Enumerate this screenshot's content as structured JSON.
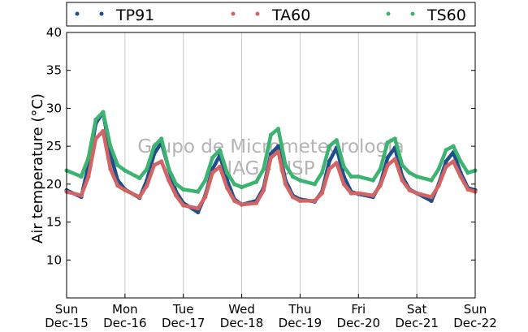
{
  "chart_data": {
    "type": "scatter",
    "title": "",
    "xlabel": "",
    "ylabel": "Air temperature (°C)",
    "ylim": [
      5,
      40
    ],
    "yticks": [
      10,
      15,
      20,
      25,
      30,
      35,
      40
    ],
    "xlim": [
      "2013-12-15T00:00",
      "2013-12-22T00:00"
    ],
    "x_ticks": [
      {
        "day": "Sun",
        "date": "Dec-15"
      },
      {
        "day": "Mon",
        "date": "Dec-16"
      },
      {
        "day": "Tue",
        "date": "Dec-17"
      },
      {
        "day": "Wed",
        "date": "Dec-18"
      },
      {
        "day": "Thu",
        "date": "Dec-19"
      },
      {
        "day": "Fri",
        "date": "Dec-20"
      },
      {
        "day": "Sat",
        "date": "Dec-21"
      },
      {
        "day": "Sun",
        "date": "Dec-22"
      }
    ],
    "grid": "vertical",
    "legend_position": "top",
    "watermark": [
      "Grupo de Micrometeorologia",
      "IAG - USP"
    ],
    "series": [
      {
        "name": "TP91",
        "color": "#1f4e8c",
        "points": [
          [
            "2013-12-15T00:00",
            19.2
          ],
          [
            "2013-12-15T06:00",
            18.3
          ],
          [
            "2013-12-15T09:00",
            22.5
          ],
          [
            "2013-12-15T12:00",
            28.0
          ],
          [
            "2013-12-15T15:00",
            29.5
          ],
          [
            "2013-12-15T18:00",
            24.0
          ],
          [
            "2013-12-15T21:00",
            20.5
          ],
          [
            "2013-12-16T00:00",
            19.3
          ],
          [
            "2013-12-16T06:00",
            18.2
          ],
          [
            "2013-12-16T09:00",
            20.5
          ],
          [
            "2013-12-16T12:00",
            24.0
          ],
          [
            "2013-12-16T15:00",
            25.5
          ],
          [
            "2013-12-16T18:00",
            22.0
          ],
          [
            "2013-12-16T21:00",
            19.0
          ],
          [
            "2013-12-17T00:00",
            17.5
          ],
          [
            "2013-12-17T06:00",
            16.3
          ],
          [
            "2013-12-17T09:00",
            18.5
          ],
          [
            "2013-12-17T12:00",
            22.0
          ],
          [
            "2013-12-17T15:00",
            23.8
          ],
          [
            "2013-12-17T18:00",
            20.5
          ],
          [
            "2013-12-17T21:00",
            18.0
          ],
          [
            "2013-12-18T00:00",
            17.3
          ],
          [
            "2013-12-18T06:00",
            17.8
          ],
          [
            "2013-12-18T09:00",
            19.5
          ],
          [
            "2013-12-18T12:00",
            24.0
          ],
          [
            "2013-12-18T15:00",
            25.0
          ],
          [
            "2013-12-18T18:00",
            20.5
          ],
          [
            "2013-12-18T21:00",
            18.5
          ],
          [
            "2013-12-19T00:00",
            18.0
          ],
          [
            "2013-12-19T06:00",
            17.7
          ],
          [
            "2013-12-19T09:00",
            19.0
          ],
          [
            "2013-12-19T12:00",
            23.0
          ],
          [
            "2013-12-19T15:00",
            24.8
          ],
          [
            "2013-12-19T18:00",
            21.0
          ],
          [
            "2013-12-19T21:00",
            19.0
          ],
          [
            "2013-12-20T00:00",
            18.7
          ],
          [
            "2013-12-20T06:00",
            18.3
          ],
          [
            "2013-12-20T09:00",
            20.0
          ],
          [
            "2013-12-20T12:00",
            23.5
          ],
          [
            "2013-12-20T15:00",
            24.8
          ],
          [
            "2013-12-20T18:00",
            21.0
          ],
          [
            "2013-12-20T21:00",
            19.3
          ],
          [
            "2013-12-21T00:00",
            18.8
          ],
          [
            "2013-12-21T06:00",
            17.8
          ],
          [
            "2013-12-21T09:00",
            20.0
          ],
          [
            "2013-12-21T12:00",
            23.0
          ],
          [
            "2013-12-21T15:00",
            24.2
          ],
          [
            "2013-12-21T18:00",
            21.5
          ],
          [
            "2013-12-21T21:00",
            19.5
          ],
          [
            "2013-12-22T00:00",
            19.2
          ]
        ]
      },
      {
        "name": "TA60",
        "color": "#d26464",
        "points": [
          [
            "2013-12-15T00:00",
            19.0
          ],
          [
            "2013-12-15T06:00",
            18.5
          ],
          [
            "2013-12-15T09:00",
            21.0
          ],
          [
            "2013-12-15T12:00",
            26.0
          ],
          [
            "2013-12-15T15:00",
            27.0
          ],
          [
            "2013-12-15T18:00",
            22.0
          ],
          [
            "2013-12-15T21:00",
            19.8
          ],
          [
            "2013-12-16T00:00",
            19.2
          ],
          [
            "2013-12-16T06:00",
            18.3
          ],
          [
            "2013-12-16T09:00",
            19.8
          ],
          [
            "2013-12-16T12:00",
            22.5
          ],
          [
            "2013-12-16T15:00",
            23.0
          ],
          [
            "2013-12-16T18:00",
            20.5
          ],
          [
            "2013-12-16T21:00",
            18.5
          ],
          [
            "2013-12-17T00:00",
            17.2
          ],
          [
            "2013-12-17T06:00",
            16.8
          ],
          [
            "2013-12-17T09:00",
            18.3
          ],
          [
            "2013-12-17T12:00",
            21.5
          ],
          [
            "2013-12-17T15:00",
            22.3
          ],
          [
            "2013-12-17T18:00",
            19.5
          ],
          [
            "2013-12-17T21:00",
            17.8
          ],
          [
            "2013-12-18T00:00",
            17.3
          ],
          [
            "2013-12-18T06:00",
            17.5
          ],
          [
            "2013-12-18T09:00",
            19.2
          ],
          [
            "2013-12-18T12:00",
            23.5
          ],
          [
            "2013-12-18T15:00",
            24.3
          ],
          [
            "2013-12-18T18:00",
            20.0
          ],
          [
            "2013-12-18T21:00",
            18.3
          ],
          [
            "2013-12-19T00:00",
            17.8
          ],
          [
            "2013-12-19T06:00",
            17.8
          ],
          [
            "2013-12-19T09:00",
            18.8
          ],
          [
            "2013-12-19T12:00",
            22.0
          ],
          [
            "2013-12-19T15:00",
            22.8
          ],
          [
            "2013-12-19T18:00",
            20.0
          ],
          [
            "2013-12-19T21:00",
            18.8
          ],
          [
            "2013-12-20T00:00",
            18.8
          ],
          [
            "2013-12-20T06:00",
            18.5
          ],
          [
            "2013-12-20T09:00",
            19.8
          ],
          [
            "2013-12-20T12:00",
            22.5
          ],
          [
            "2013-12-20T15:00",
            23.3
          ],
          [
            "2013-12-20T18:00",
            20.5
          ],
          [
            "2013-12-20T21:00",
            19.2
          ],
          [
            "2013-12-21T00:00",
            18.8
          ],
          [
            "2013-12-21T06:00",
            18.3
          ],
          [
            "2013-12-21T09:00",
            19.8
          ],
          [
            "2013-12-21T12:00",
            22.3
          ],
          [
            "2013-12-21T15:00",
            23.0
          ],
          [
            "2013-12-21T18:00",
            21.0
          ],
          [
            "2013-12-21T21:00",
            19.3
          ],
          [
            "2013-12-22T00:00",
            19.0
          ]
        ]
      },
      {
        "name": "TS60",
        "color": "#3cb371",
        "points": [
          [
            "2013-12-15T00:00",
            21.8
          ],
          [
            "2013-12-15T06:00",
            21.0
          ],
          [
            "2013-12-15T09:00",
            23.5
          ],
          [
            "2013-12-15T12:00",
            28.5
          ],
          [
            "2013-12-15T15:00",
            29.5
          ],
          [
            "2013-12-15T18:00",
            25.0
          ],
          [
            "2013-12-15T21:00",
            22.5
          ],
          [
            "2013-12-16T00:00",
            21.8
          ],
          [
            "2013-12-16T06:00",
            20.8
          ],
          [
            "2013-12-16T09:00",
            22.0
          ],
          [
            "2013-12-16T12:00",
            25.0
          ],
          [
            "2013-12-16T15:00",
            26.0
          ],
          [
            "2013-12-16T18:00",
            22.0
          ],
          [
            "2013-12-16T21:00",
            20.0
          ],
          [
            "2013-12-17T00:00",
            19.3
          ],
          [
            "2013-12-17T06:00",
            19.0
          ],
          [
            "2013-12-17T09:00",
            20.5
          ],
          [
            "2013-12-17T12:00",
            23.5
          ],
          [
            "2013-12-17T15:00",
            24.5
          ],
          [
            "2013-12-17T18:00",
            21.5
          ],
          [
            "2013-12-17T21:00",
            20.0
          ],
          [
            "2013-12-18T00:00",
            19.6
          ],
          [
            "2013-12-18T06:00",
            20.3
          ],
          [
            "2013-12-18T09:00",
            22.0
          ],
          [
            "2013-12-18T12:00",
            26.5
          ],
          [
            "2013-12-18T15:00",
            27.3
          ],
          [
            "2013-12-18T18:00",
            22.5
          ],
          [
            "2013-12-18T21:00",
            21.0
          ],
          [
            "2013-12-19T00:00",
            20.5
          ],
          [
            "2013-12-19T06:00",
            20.0
          ],
          [
            "2013-12-19T09:00",
            21.5
          ],
          [
            "2013-12-19T12:00",
            25.0
          ],
          [
            "2013-12-19T15:00",
            25.8
          ],
          [
            "2013-12-19T18:00",
            22.3
          ],
          [
            "2013-12-19T21:00",
            21.0
          ],
          [
            "2013-12-20T00:00",
            21.0
          ],
          [
            "2013-12-20T06:00",
            20.5
          ],
          [
            "2013-12-20T09:00",
            22.0
          ],
          [
            "2013-12-20T12:00",
            25.5
          ],
          [
            "2013-12-20T15:00",
            26.0
          ],
          [
            "2013-12-20T18:00",
            22.5
          ],
          [
            "2013-12-20T21:00",
            21.5
          ],
          [
            "2013-12-21T00:00",
            21.0
          ],
          [
            "2013-12-21T06:00",
            20.5
          ],
          [
            "2013-12-21T09:00",
            22.0
          ],
          [
            "2013-12-21T12:00",
            24.5
          ],
          [
            "2013-12-21T15:00",
            25.0
          ],
          [
            "2013-12-21T18:00",
            23.0
          ],
          [
            "2013-12-21T21:00",
            21.5
          ],
          [
            "2013-12-22T00:00",
            21.8
          ]
        ]
      }
    ]
  }
}
